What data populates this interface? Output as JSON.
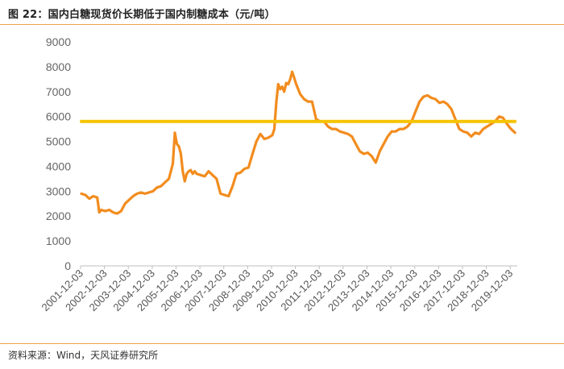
{
  "figure": {
    "title": "图 22：国内白糖现货价长期低于国内制糖成本（元/吨）",
    "source": "资料来源：Wind，天风证券研究所"
  },
  "chart_data": {
    "type": "line",
    "title": "",
    "xlabel": "",
    "ylabel": "",
    "ylim": [
      0,
      9000
    ],
    "yticks": [
      0,
      1000,
      2000,
      3000,
      4000,
      5000,
      6000,
      7000,
      8000,
      9000
    ],
    "xticks": [
      "2001-12-03",
      "2002-12-03",
      "2003-12-03",
      "2004-12-03",
      "2005-12-03",
      "2006-12-03",
      "2007-12-03",
      "2008-12-03",
      "2009-12-03",
      "2010-12-03",
      "2011-12-03",
      "2012-12-03",
      "2013-12-03",
      "2014-12-03",
      "2015-12-03",
      "2016-12-03",
      "2017-12-03",
      "2018-12-03",
      "2019-12-03"
    ],
    "grid": false,
    "legend": "none",
    "series": [
      {
        "role": "price",
        "color": "#f28c1e",
        "x": [
          "2001-12",
          "2002-02",
          "2002-04",
          "2002-06",
          "2002-08",
          "2002-09",
          "2002-10",
          "2002-12",
          "2003-02",
          "2003-04",
          "2003-06",
          "2003-08",
          "2003-10",
          "2003-12",
          "2004-02",
          "2004-04",
          "2004-06",
          "2004-08",
          "2004-10",
          "2004-12",
          "2005-02",
          "2005-04",
          "2005-06",
          "2005-08",
          "2005-10",
          "2005-11",
          "2005-12",
          "2006-01",
          "2006-02",
          "2006-03",
          "2006-04",
          "2006-05",
          "2006-06",
          "2006-07",
          "2006-08",
          "2006-09",
          "2006-10",
          "2006-12",
          "2007-02",
          "2007-04",
          "2007-06",
          "2007-08",
          "2007-10",
          "2007-12",
          "2008-02",
          "2008-04",
          "2008-06",
          "2008-08",
          "2008-10",
          "2008-12",
          "2009-02",
          "2009-04",
          "2009-06",
          "2009-08",
          "2009-10",
          "2009-12",
          "2010-01",
          "2010-02",
          "2010-03",
          "2010-04",
          "2010-05",
          "2010-06",
          "2010-07",
          "2010-08",
          "2010-09",
          "2010-10",
          "2010-11",
          "2010-12",
          "2011-02",
          "2011-04",
          "2011-06",
          "2011-08",
          "2011-10",
          "2011-12",
          "2012-02",
          "2012-04",
          "2012-06",
          "2012-08",
          "2012-10",
          "2012-12",
          "2013-02",
          "2013-04",
          "2013-06",
          "2013-08",
          "2013-10",
          "2013-12",
          "2014-02",
          "2014-04",
          "2014-06",
          "2014-08",
          "2014-10",
          "2014-12",
          "2015-02",
          "2015-04",
          "2015-06",
          "2015-08",
          "2015-10",
          "2015-12",
          "2016-02",
          "2016-04",
          "2016-06",
          "2016-08",
          "2016-10",
          "2016-12",
          "2017-02",
          "2017-04",
          "2017-06",
          "2017-08",
          "2017-10",
          "2017-12",
          "2018-02",
          "2018-04",
          "2018-06",
          "2018-08",
          "2018-10",
          "2018-12",
          "2019-02",
          "2019-04",
          "2019-06",
          "2019-08",
          "2019-10",
          "2019-12",
          "2020-02"
        ],
        "y": [
          2900,
          2850,
          2700,
          2800,
          2750,
          2150,
          2250,
          2200,
          2250,
          2150,
          2100,
          2200,
          2500,
          2650,
          2800,
          2900,
          2950,
          2900,
          2950,
          3000,
          3150,
          3200,
          3350,
          3500,
          4100,
          5350,
          4900,
          4800,
          4500,
          3800,
          3400,
          3700,
          3800,
          3850,
          3700,
          3800,
          3700,
          3650,
          3600,
          3800,
          3650,
          3500,
          2900,
          2850,
          2800,
          3200,
          3700,
          3750,
          3900,
          3950,
          4500,
          5000,
          5300,
          5100,
          5150,
          5250,
          5500,
          6600,
          7300,
          7100,
          7200,
          7000,
          7350,
          7300,
          7500,
          7800,
          7550,
          7300,
          6900,
          6700,
          6600,
          6600,
          5900,
          5800,
          5800,
          5600,
          5500,
          5500,
          5400,
          5350,
          5300,
          5200,
          4900,
          4600,
          4500,
          4550,
          4400,
          4150,
          4600,
          4900,
          5200,
          5400,
          5400,
          5500,
          5500,
          5600,
          5800,
          6200,
          6600,
          6800,
          6850,
          6750,
          6700,
          6550,
          6600,
          6500,
          6300,
          5900,
          5500,
          5400,
          5350,
          5200,
          5350,
          5300,
          5500,
          5600,
          5700,
          5800,
          6000,
          5950,
          5700,
          5500,
          5350
        ]
      },
      {
        "role": "cost",
        "color": "#f5c300",
        "x": [
          "2001-12",
          "2020-02"
        ],
        "y": [
          5800,
          5800
        ]
      }
    ]
  }
}
